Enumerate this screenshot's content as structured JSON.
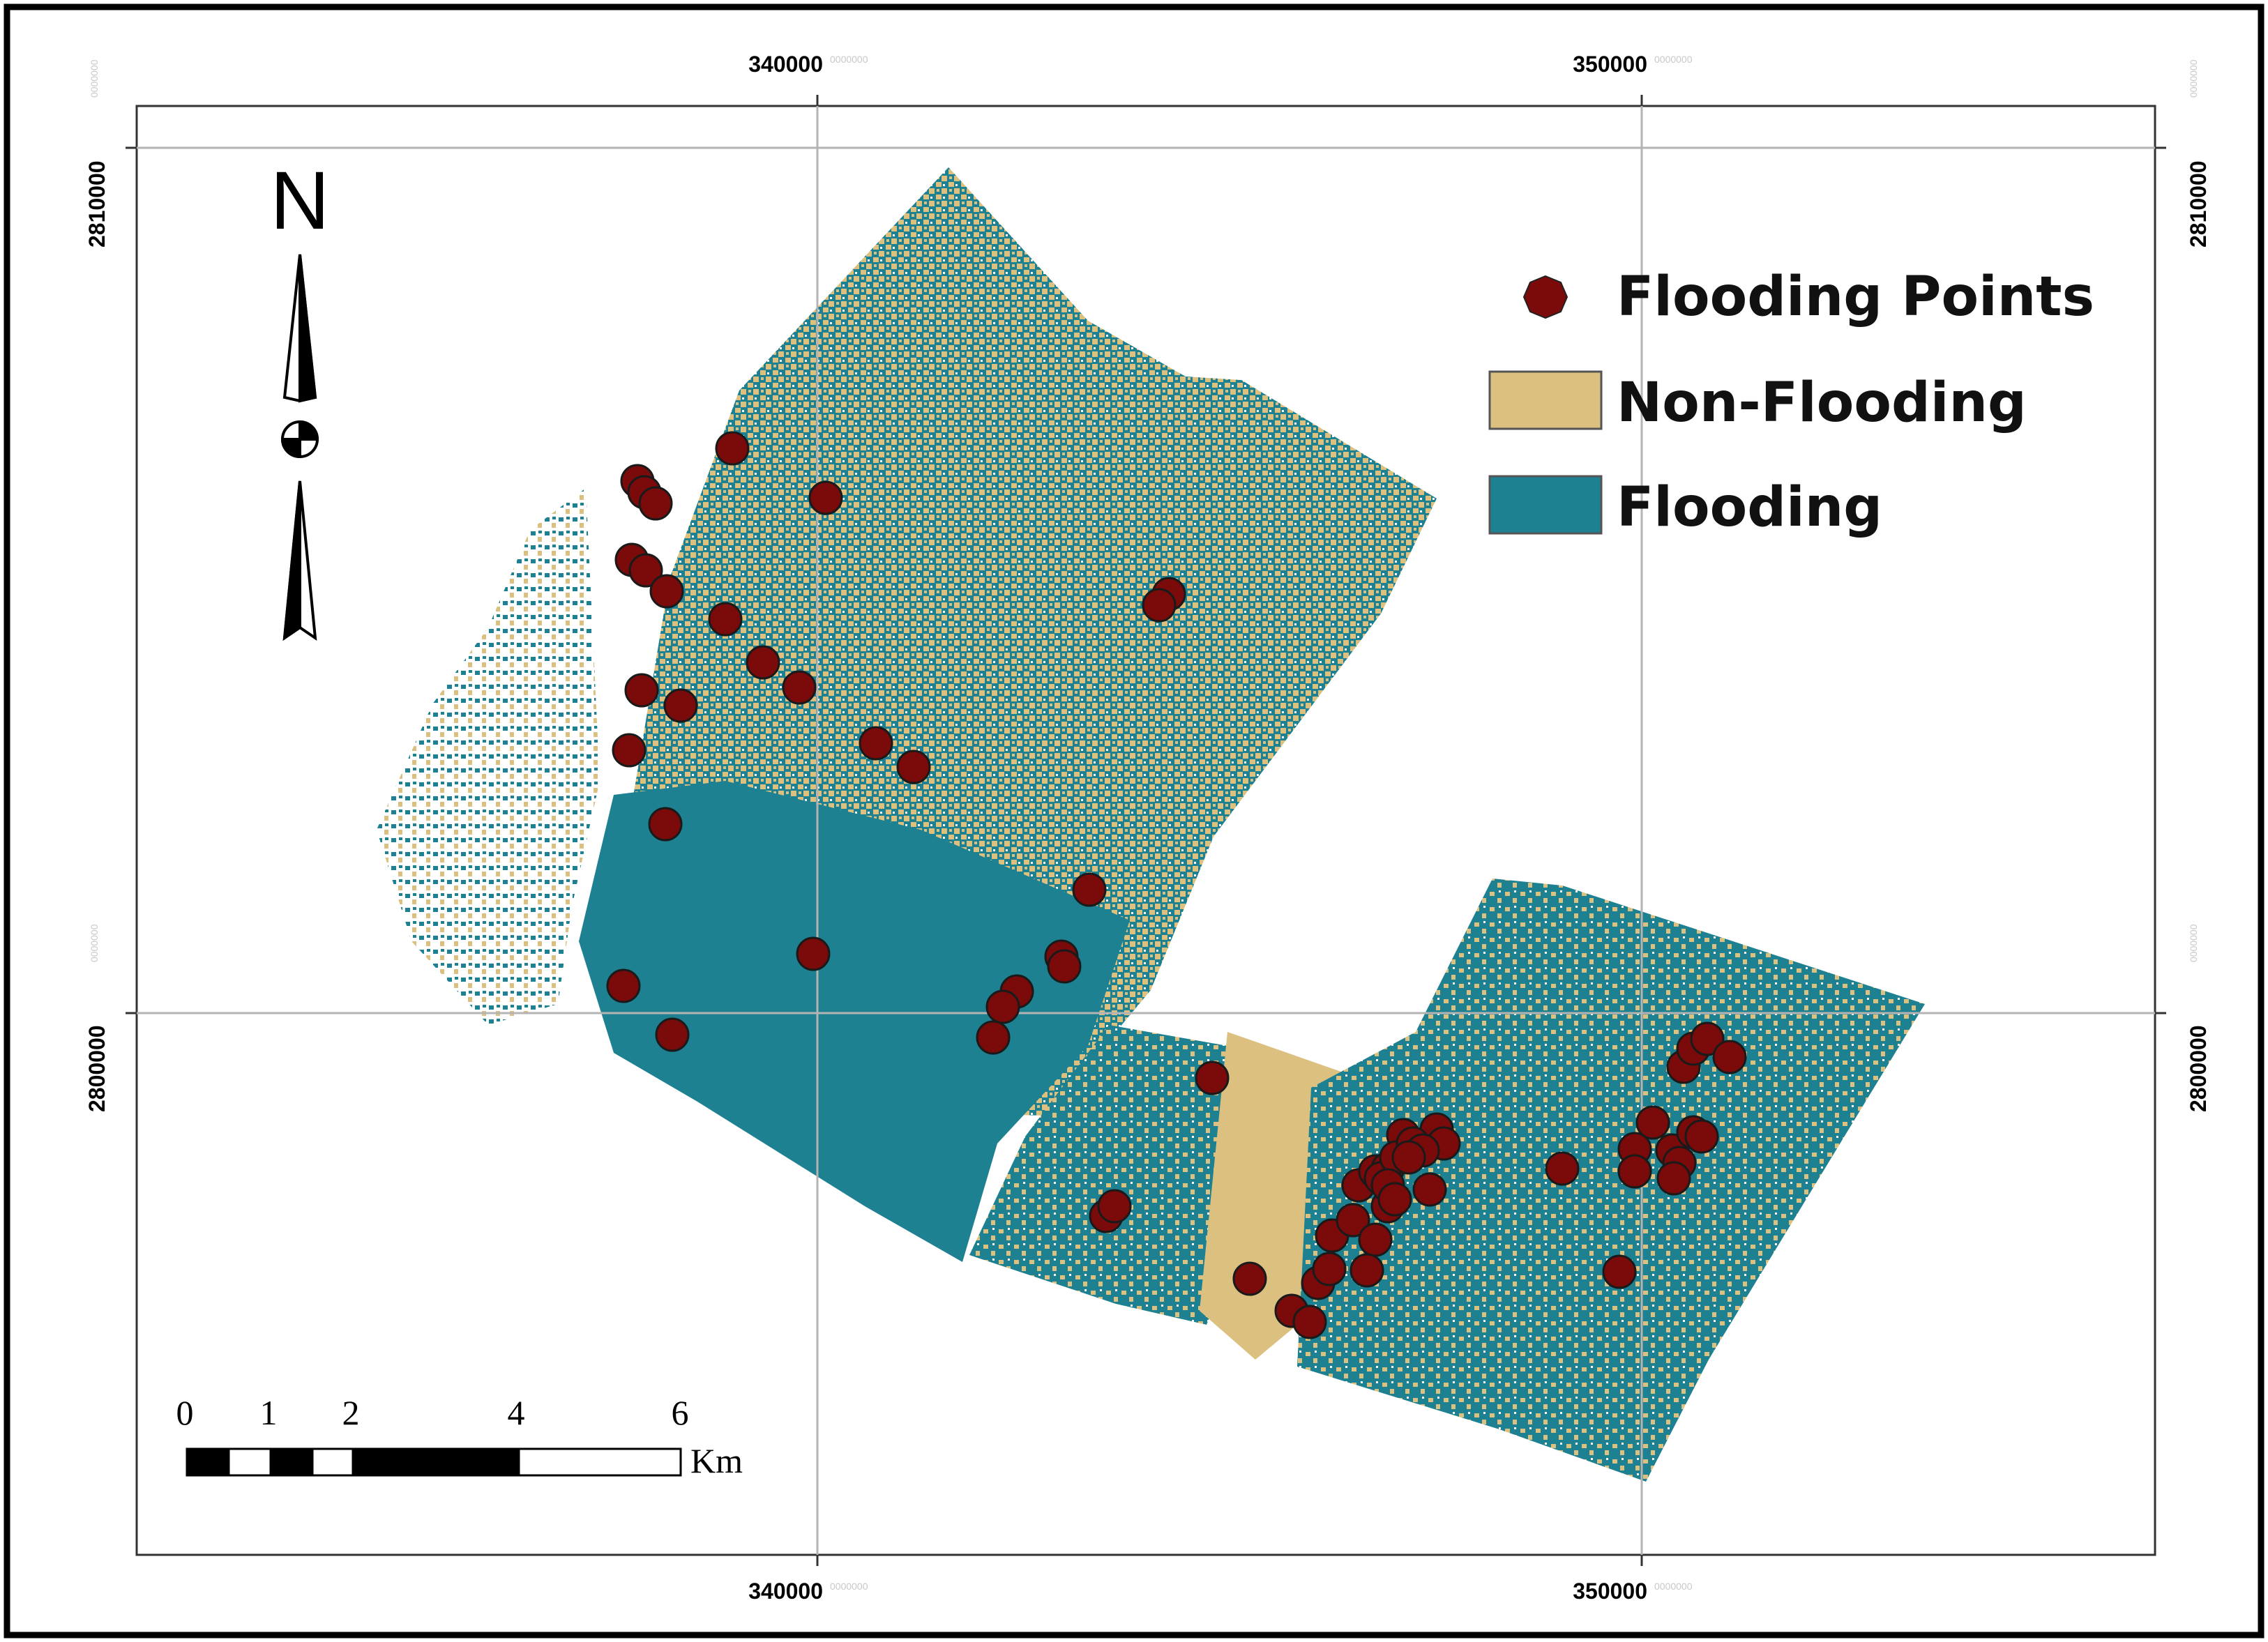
{
  "map": {
    "axes": {
      "x_top_labels": [
        "340000",
        "350000"
      ],
      "x_bottom_labels": [
        "340000",
        "350000"
      ],
      "y_left_labels": [
        "2810000",
        "2800000"
      ],
      "y_right_labels": [
        "2810000",
        "2800000"
      ],
      "label_suffix": "0000000"
    },
    "north_arrow": {
      "label": "N",
      "icon": "north-arrow-icon"
    },
    "legend": {
      "items": [
        {
          "label": "Flooding Points",
          "symbol": "circle",
          "color": "#7b0a0a"
        },
        {
          "label": "Non-Flooding",
          "symbol": "square",
          "color": "#dcc07f"
        },
        {
          "label": "Flooding",
          "symbol": "square",
          "color": "#1e8191"
        }
      ]
    },
    "scale_bar": {
      "labels": [
        "0",
        "1",
        "2",
        "4",
        "6"
      ],
      "unit": "Km"
    },
    "colors": {
      "flooding": "#1e8191",
      "non_flooding": "#dcc07f",
      "point": "#7b0a0a",
      "grid": "#b4b4b4",
      "frame": "#000000"
    }
  }
}
